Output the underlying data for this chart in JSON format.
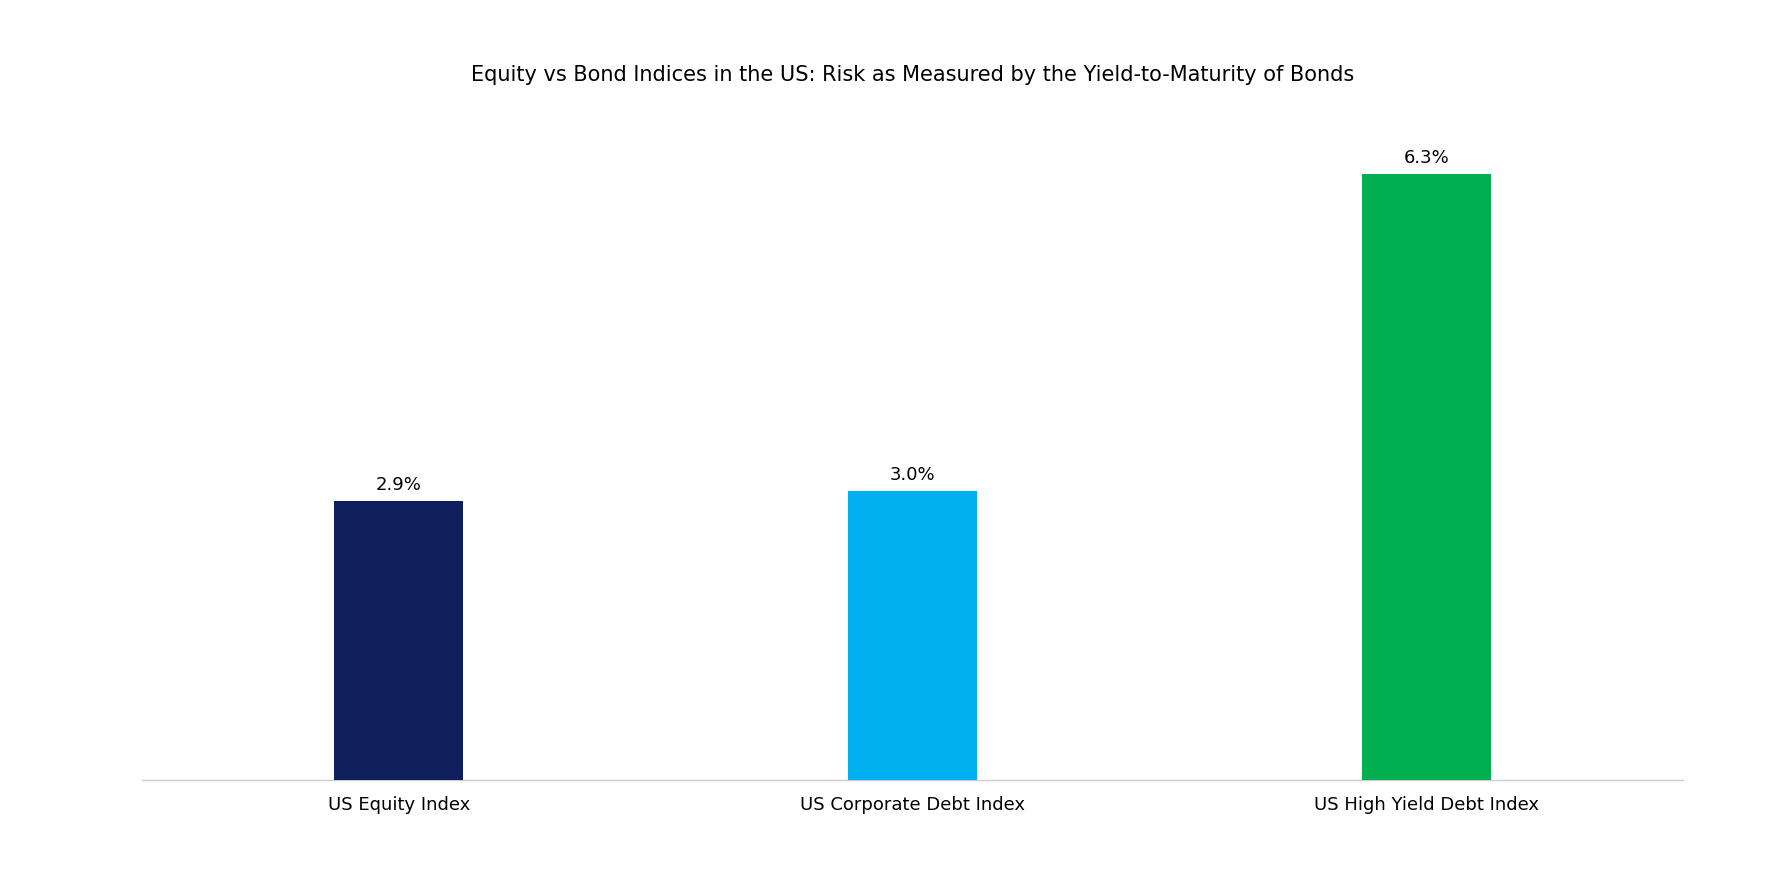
{
  "title": "Equity vs Bond Indices in the US: Risk as Measured by the Yield-to-Maturity of Bonds",
  "categories": [
    "US Equity Index",
    "US Corporate Debt Index",
    "US High Yield Debt Index"
  ],
  "values": [
    2.9,
    3.0,
    6.3
  ],
  "labels": [
    "2.9%",
    "3.0%",
    "6.3%"
  ],
  "bar_colors": [
    "#0d1f5c",
    "#00b0f0",
    "#00b050"
  ],
  "background_color": "#ffffff",
  "title_fontsize": 15,
  "label_fontsize": 13,
  "tick_fontsize": 13,
  "ylim": [
    0,
    7.0
  ],
  "bar_width": 0.25,
  "x_positions": [
    0,
    1,
    2
  ],
  "xlim": [
    -0.5,
    2.5
  ]
}
